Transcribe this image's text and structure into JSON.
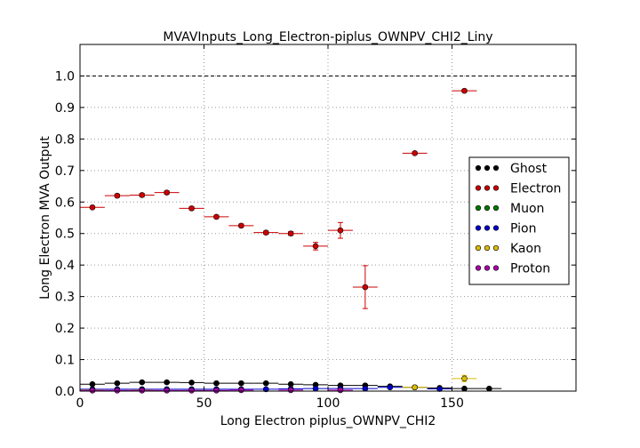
{
  "chart_data": {
    "type": "scatter",
    "title": "MVAVInputs_Long_Electron-piplus_OWNPV_CHI2_Liny",
    "xlabel": "Long Electron piplus_OWNPV_CHI2",
    "ylabel": "Long Electron MVA Output",
    "xlim": [
      0,
      200
    ],
    "ylim": [
      0,
      1.1
    ],
    "xticks": [
      "0",
      "50",
      "100",
      "150"
    ],
    "yticks": [
      "0.0",
      "0.1",
      "0.2",
      "0.3",
      "0.4",
      "0.5",
      "0.6",
      "0.7",
      "0.8",
      "0.9",
      "1.0"
    ],
    "grid": true,
    "reference_line": 1.0,
    "legend_position": "right",
    "series": [
      {
        "name": "Ghost",
        "color": "#000000",
        "points": [
          {
            "x": 5,
            "y": 0.022,
            "ex": 5,
            "ey": 0.002
          },
          {
            "x": 15,
            "y": 0.025,
            "ex": 5,
            "ey": 0.002
          },
          {
            "x": 25,
            "y": 0.028,
            "ex": 5,
            "ey": 0.002
          },
          {
            "x": 35,
            "y": 0.028,
            "ex": 5,
            "ey": 0.002
          },
          {
            "x": 45,
            "y": 0.027,
            "ex": 5,
            "ey": 0.002
          },
          {
            "x": 55,
            "y": 0.025,
            "ex": 5,
            "ey": 0.002
          },
          {
            "x": 65,
            "y": 0.025,
            "ex": 5,
            "ey": 0.002
          },
          {
            "x": 75,
            "y": 0.025,
            "ex": 5,
            "ey": 0.002
          },
          {
            "x": 85,
            "y": 0.022,
            "ex": 5,
            "ey": 0.002
          },
          {
            "x": 95,
            "y": 0.02,
            "ex": 5,
            "ey": 0.002
          },
          {
            "x": 105,
            "y": 0.018,
            "ex": 5,
            "ey": 0.002
          },
          {
            "x": 115,
            "y": 0.018,
            "ex": 5,
            "ey": 0.002
          },
          {
            "x": 125,
            "y": 0.015,
            "ex": 5,
            "ey": 0.002
          },
          {
            "x": 135,
            "y": 0.012,
            "ex": 5,
            "ey": 0.002
          },
          {
            "x": 145,
            "y": 0.01,
            "ex": 5,
            "ey": 0.002
          },
          {
            "x": 155,
            "y": 0.008,
            "ex": 5,
            "ey": 0.002
          },
          {
            "x": 165,
            "y": 0.008,
            "ex": 5,
            "ey": 0.002
          }
        ]
      },
      {
        "name": "Electron",
        "color": "#cc0000",
        "points": [
          {
            "x": 5,
            "y": 0.583,
            "ex": 5,
            "ey": 0.004
          },
          {
            "x": 15,
            "y": 0.62,
            "ex": 5,
            "ey": 0.005
          },
          {
            "x": 25,
            "y": 0.622,
            "ex": 5,
            "ey": 0.005
          },
          {
            "x": 35,
            "y": 0.63,
            "ex": 5,
            "ey": 0.005
          },
          {
            "x": 45,
            "y": 0.58,
            "ex": 5,
            "ey": 0.005
          },
          {
            "x": 55,
            "y": 0.553,
            "ex": 5,
            "ey": 0.005
          },
          {
            "x": 65,
            "y": 0.525,
            "ex": 5,
            "ey": 0.005
          },
          {
            "x": 75,
            "y": 0.503,
            "ex": 5,
            "ey": 0.005
          },
          {
            "x": 85,
            "y": 0.5,
            "ex": 5,
            "ey": 0.006
          },
          {
            "x": 95,
            "y": 0.46,
            "ex": 5,
            "ey": 0.012
          },
          {
            "x": 105,
            "y": 0.51,
            "ex": 5,
            "ey": 0.025
          },
          {
            "x": 115,
            "y": 0.33,
            "ex": 5,
            "ey": 0.068
          },
          {
            "x": 135,
            "y": 0.755,
            "ex": 5,
            "ey": 0.004
          },
          {
            "x": 155,
            "y": 0.953,
            "ex": 5,
            "ey": 0.004
          }
        ]
      },
      {
        "name": "Muon",
        "color": "#007700",
        "points": []
      },
      {
        "name": "Pion",
        "color": "#0000cc",
        "points": [
          {
            "x": 5,
            "y": 0.006,
            "ex": 5,
            "ey": 0.001
          },
          {
            "x": 15,
            "y": 0.006,
            "ex": 5,
            "ey": 0.001
          },
          {
            "x": 25,
            "y": 0.006,
            "ex": 5,
            "ey": 0.001
          },
          {
            "x": 35,
            "y": 0.006,
            "ex": 5,
            "ey": 0.001
          },
          {
            "x": 45,
            "y": 0.006,
            "ex": 5,
            "ey": 0.001
          },
          {
            "x": 55,
            "y": 0.006,
            "ex": 5,
            "ey": 0.001
          },
          {
            "x": 65,
            "y": 0.006,
            "ex": 5,
            "ey": 0.001
          },
          {
            "x": 75,
            "y": 0.006,
            "ex": 5,
            "ey": 0.001
          },
          {
            "x": 85,
            "y": 0.007,
            "ex": 5,
            "ey": 0.001
          },
          {
            "x": 95,
            "y": 0.008,
            "ex": 5,
            "ey": 0.001
          },
          {
            "x": 105,
            "y": 0.008,
            "ex": 5,
            "ey": 0.001
          },
          {
            "x": 115,
            "y": 0.008,
            "ex": 5,
            "ey": 0.001
          },
          {
            "x": 125,
            "y": 0.012,
            "ex": 5,
            "ey": 0.002
          },
          {
            "x": 145,
            "y": 0.007,
            "ex": 5,
            "ey": 0.001
          }
        ]
      },
      {
        "name": "Kaon",
        "color": "#ddbb00",
        "points": [
          {
            "x": 5,
            "y": 0.003,
            "ex": 5,
            "ey": 0.001
          },
          {
            "x": 25,
            "y": 0.003,
            "ex": 5,
            "ey": 0.001
          },
          {
            "x": 135,
            "y": 0.012,
            "ex": 5,
            "ey": 0.003
          },
          {
            "x": 155,
            "y": 0.04,
            "ex": 5,
            "ey": 0.01
          }
        ]
      },
      {
        "name": "Proton",
        "color": "#aa00aa",
        "points": [
          {
            "x": 5,
            "y": 0.002,
            "ex": 5,
            "ey": 0.001
          },
          {
            "x": 15,
            "y": 0.002,
            "ex": 5,
            "ey": 0.001
          },
          {
            "x": 25,
            "y": 0.002,
            "ex": 5,
            "ey": 0.001
          },
          {
            "x": 35,
            "y": 0.002,
            "ex": 5,
            "ey": 0.001
          },
          {
            "x": 45,
            "y": 0.002,
            "ex": 5,
            "ey": 0.001
          },
          {
            "x": 55,
            "y": 0.002,
            "ex": 5,
            "ey": 0.001
          },
          {
            "x": 65,
            "y": 0.003,
            "ex": 5,
            "ey": 0.001
          },
          {
            "x": 85,
            "y": 0.003,
            "ex": 5,
            "ey": 0.001
          },
          {
            "x": 105,
            "y": 0.003,
            "ex": 5,
            "ey": 0.001
          }
        ]
      }
    ]
  }
}
